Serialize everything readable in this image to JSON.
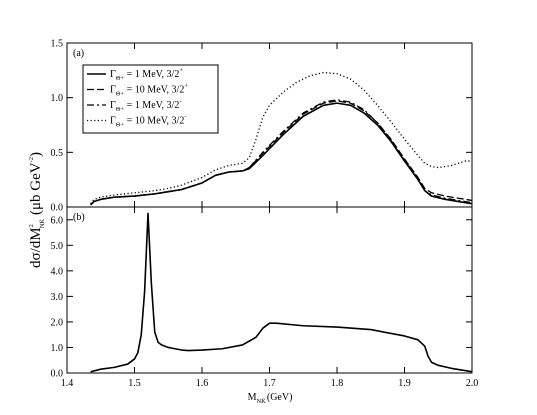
{
  "chart_data": [
    {
      "type": "line",
      "panel_label": "(a)",
      "xlim": [
        1.4,
        2.0
      ],
      "ylim": [
        0,
        1.5
      ],
      "yticks": [
        {
          "value": 0.0,
          "label": "0.0"
        },
        {
          "value": 0.5,
          "label": "0.5"
        },
        {
          "value": 1.0,
          "label": "1.0"
        },
        {
          "value": 1.5,
          "label": "1.5"
        }
      ],
      "legend_position": "upper-left",
      "series": [
        {
          "name": "Γ_Θ+ = 1 MeV, 3/2+",
          "legend": {
            "gamma": "Γ",
            "sub": "Θ+",
            "text": " = 1 MeV, 3/2",
            "sup": "+"
          },
          "style": "solid",
          "x": [
            1.435,
            1.44,
            1.45,
            1.47,
            1.5,
            1.53,
            1.55,
            1.57,
            1.6,
            1.62,
            1.64,
            1.66,
            1.67,
            1.69,
            1.72,
            1.75,
            1.78,
            1.8,
            1.82,
            1.84,
            1.86,
            1.88,
            1.9,
            1.92,
            1.93,
            1.94,
            1.96,
            1.98,
            2.0
          ],
          "y": [
            0.02,
            0.05,
            0.07,
            0.09,
            0.1,
            0.12,
            0.14,
            0.16,
            0.22,
            0.29,
            0.32,
            0.33,
            0.35,
            0.47,
            0.66,
            0.83,
            0.93,
            0.95,
            0.93,
            0.86,
            0.75,
            0.6,
            0.42,
            0.25,
            0.15,
            0.1,
            0.07,
            0.05,
            0.03
          ]
        },
        {
          "name": "Γ_Θ+ = 10 MeV, 3/2+",
          "legend": {
            "gamma": "Γ",
            "sub": "Θ+",
            "text": " = 10 MeV, 3/2",
            "sup": "+"
          },
          "style": "dashed",
          "x": [
            1.435,
            1.44,
            1.45,
            1.47,
            1.5,
            1.53,
            1.55,
            1.57,
            1.6,
            1.62,
            1.64,
            1.66,
            1.67,
            1.69,
            1.72,
            1.75,
            1.78,
            1.8,
            1.82,
            1.84,
            1.86,
            1.88,
            1.9,
            1.92,
            1.93,
            1.94,
            1.96,
            1.98,
            2.0
          ],
          "y": [
            0.02,
            0.05,
            0.07,
            0.09,
            0.1,
            0.12,
            0.14,
            0.16,
            0.22,
            0.29,
            0.32,
            0.33,
            0.36,
            0.49,
            0.68,
            0.85,
            0.95,
            0.97,
            0.95,
            0.88,
            0.77,
            0.62,
            0.44,
            0.27,
            0.17,
            0.13,
            0.1,
            0.08,
            0.06
          ]
        },
        {
          "name": "Γ_Θ+ = 1 MeV, 3/2-",
          "legend": {
            "gamma": "Γ",
            "sub": "Θ+",
            "text": " = 1 MeV, 3/2",
            "sup": "-"
          },
          "style": "dash-dot",
          "x": [
            1.435,
            1.44,
            1.45,
            1.47,
            1.5,
            1.53,
            1.55,
            1.57,
            1.6,
            1.62,
            1.64,
            1.66,
            1.67,
            1.69,
            1.72,
            1.75,
            1.78,
            1.8,
            1.82,
            1.84,
            1.86,
            1.88,
            1.9,
            1.92,
            1.93,
            1.94,
            1.96,
            1.98,
            2.0
          ],
          "y": [
            0.02,
            0.05,
            0.07,
            0.09,
            0.1,
            0.12,
            0.14,
            0.16,
            0.22,
            0.29,
            0.32,
            0.33,
            0.36,
            0.5,
            0.69,
            0.86,
            0.96,
            0.98,
            0.96,
            0.89,
            0.77,
            0.61,
            0.43,
            0.26,
            0.15,
            0.11,
            0.08,
            0.06,
            0.04
          ]
        },
        {
          "name": "Γ_Θ+ = 10 MeV, 3/2-",
          "legend": {
            "gamma": "Γ",
            "sub": "Θ+",
            "text": " = 10 MeV, 3/2",
            "sup": "-"
          },
          "style": "dotted",
          "x": [
            1.435,
            1.44,
            1.45,
            1.47,
            1.5,
            1.53,
            1.55,
            1.57,
            1.6,
            1.62,
            1.64,
            1.66,
            1.67,
            1.68,
            1.69,
            1.7,
            1.72,
            1.74,
            1.76,
            1.78,
            1.8,
            1.82,
            1.84,
            1.86,
            1.88,
            1.9,
            1.92,
            1.93,
            1.94,
            1.95,
            1.97,
            1.99,
            2.0
          ],
          "y": [
            0.03,
            0.07,
            0.09,
            0.11,
            0.13,
            0.15,
            0.17,
            0.2,
            0.27,
            0.34,
            0.38,
            0.4,
            0.45,
            0.62,
            0.82,
            0.93,
            1.05,
            1.14,
            1.2,
            1.23,
            1.22,
            1.17,
            1.07,
            0.93,
            0.78,
            0.62,
            0.47,
            0.4,
            0.37,
            0.36,
            0.38,
            0.42,
            0.42
          ]
        }
      ]
    },
    {
      "type": "line",
      "panel_label": "(b)",
      "xlim": [
        1.4,
        2.0
      ],
      "ylim": [
        0,
        6.5
      ],
      "yticks": [
        {
          "value": 0.0,
          "label": "0.0"
        },
        {
          "value": 1.0,
          "label": "1.0"
        },
        {
          "value": 2.0,
          "label": "2.0"
        },
        {
          "value": 3.0,
          "label": "3.0"
        },
        {
          "value": 4.0,
          "label": "4.0"
        },
        {
          "value": 5.0,
          "label": "5.0"
        },
        {
          "value": 6.0,
          "label": "6.0"
        }
      ],
      "series": [
        {
          "style": "solid",
          "x": [
            1.435,
            1.45,
            1.47,
            1.49,
            1.5,
            1.505,
            1.51,
            1.515,
            1.52,
            1.525,
            1.53,
            1.535,
            1.54,
            1.55,
            1.56,
            1.57,
            1.58,
            1.6,
            1.63,
            1.66,
            1.68,
            1.69,
            1.7,
            1.71,
            1.75,
            1.8,
            1.85,
            1.9,
            1.92,
            1.93,
            1.935,
            1.94,
            1.95,
            1.97,
            2.0
          ],
          "y": [
            0.05,
            0.15,
            0.22,
            0.35,
            0.55,
            0.8,
            1.5,
            3.2,
            6.25,
            3.5,
            1.6,
            1.2,
            1.1,
            1.0,
            0.95,
            0.9,
            0.88,
            0.9,
            0.95,
            1.1,
            1.4,
            1.75,
            1.95,
            1.95,
            1.85,
            1.8,
            1.7,
            1.45,
            1.3,
            1.05,
            0.65,
            0.42,
            0.3,
            0.18,
            0.05
          ]
        }
      ]
    }
  ],
  "x_axis": {
    "label_main": "M",
    "label_sub": "NK̄",
    "label_unit": "(GeV)",
    "ticks": [
      {
        "value": 1.4,
        "label": "1.4"
      },
      {
        "value": 1.5,
        "label": "1.5"
      },
      {
        "value": 1.6,
        "label": "1.6"
      },
      {
        "value": 1.7,
        "label": "1.7"
      },
      {
        "value": 1.8,
        "label": "1.8"
      },
      {
        "value": 1.9,
        "label": "1.9"
      },
      {
        "value": 2.0,
        "label": "2.0"
      }
    ]
  },
  "y_axis": {
    "label_main": "dσ/dM",
    "label_sup": "2",
    "label_sub": "NK̄",
    "label_unit_open": " (μb GeV",
    "label_unit_sup": "-2",
    "label_unit_close": ")"
  }
}
